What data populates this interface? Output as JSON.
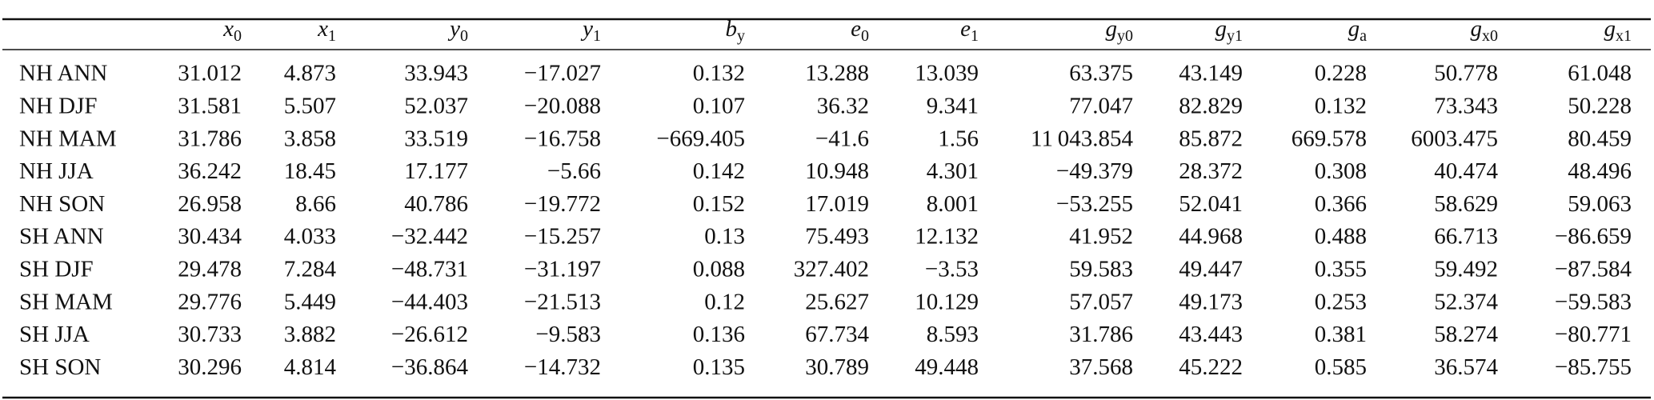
{
  "table": {
    "header": [
      {
        "base": "x",
        "sub": "0"
      },
      {
        "base": "x",
        "sub": "1"
      },
      {
        "base": "y",
        "sub": "0"
      },
      {
        "base": "y",
        "sub": "1"
      },
      {
        "base": "b",
        "sub": "y"
      },
      {
        "base": "e",
        "sub": "0"
      },
      {
        "base": "e",
        "sub": "1"
      },
      {
        "base": "g",
        "sub": "y0"
      },
      {
        "base": "g",
        "sub": "y1"
      },
      {
        "base": "g",
        "sub": "a"
      },
      {
        "base": "g",
        "sub": "x0"
      },
      {
        "base": "g",
        "sub": "x1"
      }
    ],
    "rows": [
      {
        "label": "NH ANN",
        "cells": [
          "31.012",
          "4.873",
          "33.943",
          "−17.027",
          "0.132",
          "13.288",
          "13.039",
          "63.375",
          "43.149",
          "0.228",
          "50.778",
          "61.048"
        ]
      },
      {
        "label": "NH DJF",
        "cells": [
          "31.581",
          "5.507",
          "52.037",
          "−20.088",
          "0.107",
          "36.32",
          "9.341",
          "77.047",
          "82.829",
          "0.132",
          "73.343",
          "50.228"
        ]
      },
      {
        "label": "NH MAM",
        "cells": [
          "31.786",
          "3.858",
          "33.519",
          "−16.758",
          "−669.405",
          "−41.6",
          "1.56",
          "11 043.854",
          "85.872",
          "669.578",
          "6003.475",
          "80.459"
        ]
      },
      {
        "label": "NH JJA",
        "cells": [
          "36.242",
          "18.45",
          "17.177",
          "−5.66",
          "0.142",
          "10.948",
          "4.301",
          "−49.379",
          "28.372",
          "0.308",
          "40.474",
          "48.496"
        ]
      },
      {
        "label": "NH SON",
        "cells": [
          "26.958",
          "8.66",
          "40.786",
          "−19.772",
          "0.152",
          "17.019",
          "8.001",
          "−53.255",
          "52.041",
          "0.366",
          "58.629",
          "59.063"
        ]
      },
      {
        "label": "SH ANN",
        "cells": [
          "30.434",
          "4.033",
          "−32.442",
          "−15.257",
          "0.13",
          "75.493",
          "12.132",
          "41.952",
          "44.968",
          "0.488",
          "66.713",
          "−86.659"
        ]
      },
      {
        "label": "SH DJF",
        "cells": [
          "29.478",
          "7.284",
          "−48.731",
          "−31.197",
          "0.088",
          "327.402",
          "−3.53",
          "59.583",
          "49.447",
          "0.355",
          "59.492",
          "−87.584"
        ]
      },
      {
        "label": "SH MAM",
        "cells": [
          "29.776",
          "5.449",
          "−44.403",
          "−21.513",
          "0.12",
          "25.627",
          "10.129",
          "57.057",
          "49.173",
          "0.253",
          "52.374",
          "−59.583"
        ]
      },
      {
        "label": "SH JJA",
        "cells": [
          "30.733",
          "3.882",
          "−26.612",
          "−9.583",
          "0.136",
          "67.734",
          "8.593",
          "31.786",
          "43.443",
          "0.381",
          "58.274",
          "−80.771"
        ]
      },
      {
        "label": "SH SON",
        "cells": [
          "30.296",
          "4.814",
          "−36.864",
          "−14.732",
          "0.135",
          "30.789",
          "49.448",
          "37.568",
          "45.222",
          "0.585",
          "36.574",
          "−85.755"
        ]
      }
    ]
  }
}
